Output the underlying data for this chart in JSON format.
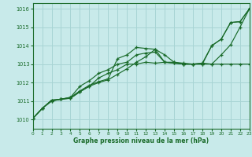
{
  "xlabel": "Graphe pression niveau de la mer (hPa)",
  "bg_color": "#c8eaea",
  "grid_color": "#a8d4d4",
  "line_color": "#1a6b2a",
  "xlim": [
    0,
    23
  ],
  "ylim": [
    1009.5,
    1016.3
  ],
  "xticks": [
    0,
    1,
    2,
    3,
    4,
    5,
    6,
    7,
    8,
    9,
    10,
    11,
    12,
    13,
    14,
    15,
    16,
    17,
    18,
    19,
    20,
    21,
    22,
    23
  ],
  "yticks": [
    1010,
    1011,
    1012,
    1013,
    1014,
    1015,
    1016
  ],
  "series": [
    [
      1010.05,
      1010.6,
      1011.0,
      1011.1,
      1011.15,
      1011.5,
      1011.8,
      1012.25,
      1012.5,
      1012.7,
      1013.0,
      1013.0,
      1013.1,
      1013.05,
      1013.1,
      1013.05,
      1013.0,
      1013.0,
      1013.05,
      1014.0,
      1014.35,
      1015.25,
      1015.3,
      1016.0
    ],
    [
      1010.05,
      1010.6,
      1011.0,
      1011.1,
      1011.15,
      1011.5,
      1011.8,
      1012.0,
      1012.15,
      1012.45,
      1012.75,
      1013.1,
      1013.4,
      1013.8,
      1013.5,
      1013.1,
      1013.0,
      1013.0,
      1013.0,
      1013.0,
      1013.0,
      1013.0,
      1013.0,
      1013.0
    ],
    [
      1010.05,
      1010.6,
      1011.05,
      1011.1,
      1011.2,
      1011.55,
      1011.85,
      1012.05,
      1012.2,
      1013.3,
      1013.5,
      1013.9,
      1013.85,
      1013.8,
      1013.1,
      1013.1,
      1013.05,
      1013.0,
      1013.05,
      1013.0,
      1013.5,
      1014.05,
      1015.0,
      1016.0
    ],
    [
      1010.05,
      1010.6,
      1011.05,
      1011.1,
      1011.2,
      1011.8,
      1012.1,
      1012.5,
      1012.7,
      1013.0,
      1013.1,
      1013.5,
      1013.6,
      1013.65,
      1013.1,
      1013.05,
      1013.0,
      1013.0,
      1013.0,
      1014.0,
      1014.35,
      1015.25,
      1015.3,
      1016.0
    ]
  ]
}
